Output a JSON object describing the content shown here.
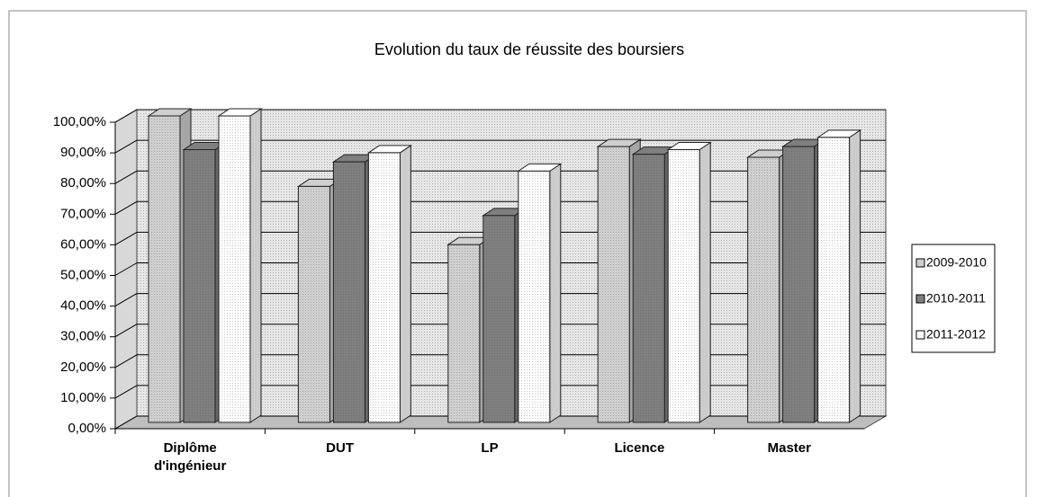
{
  "chart_data": {
    "type": "bar3d",
    "title": "Evolution du taux de réussite des boursiers",
    "categories": [
      "Diplôme d'ingénieur",
      "DUT",
      "LP",
      "Licence",
      "Master"
    ],
    "series": [
      {
        "name": "2009-2010",
        "color": "#cfcfcf",
        "values": [
          100,
          77,
          58,
          90,
          86.5
        ]
      },
      {
        "name": "2010-2011",
        "color": "#7f7f7f",
        "values": [
          89,
          85,
          67.5,
          87.5,
          90
        ]
      },
      {
        "name": "2011-2012",
        "color": "#ffffff",
        "values": [
          100,
          88,
          82,
          89,
          93
        ]
      }
    ],
    "ylim": [
      0,
      100
    ],
    "yticks": [
      {
        "value": 0,
        "label": "0,00%"
      },
      {
        "value": 10,
        "label": "10,00%"
      },
      {
        "value": 20,
        "label": "20,00%"
      },
      {
        "value": 30,
        "label": "30,00%"
      },
      {
        "value": 40,
        "label": "40,00%"
      },
      {
        "value": 50,
        "label": "50,00%"
      },
      {
        "value": 60,
        "label": "60,00%"
      },
      {
        "value": 70,
        "label": "70,00%"
      },
      {
        "value": 80,
        "label": "80,00%"
      },
      {
        "value": 90,
        "label": "90,00%"
      },
      {
        "value": 100,
        "label": "100,00%"
      }
    ],
    "grid": true,
    "legend": "right"
  }
}
